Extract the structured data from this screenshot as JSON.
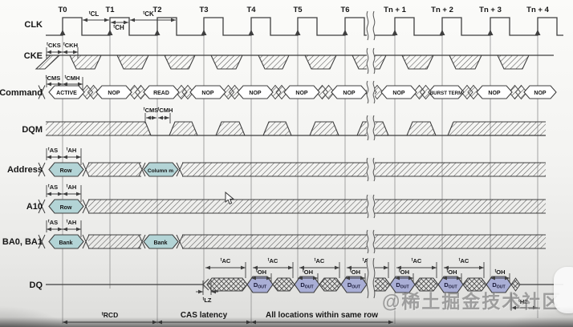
{
  "diagram": {
    "clock_labels": [
      "T0",
      "T1",
      "T2",
      "T3",
      "T4",
      "T5",
      "T6",
      "Tn + 1",
      "Tn + 2",
      "Tn + 3",
      "Tn + 4"
    ],
    "signal_labels": {
      "clk": "CLK",
      "cke": "CKE",
      "command": "Command",
      "dqm": "DQM",
      "address": "Address",
      "a10": "A10",
      "ba": "BA0, BA1",
      "dq": "DQ"
    },
    "commands": [
      "ACTIVE",
      "NOP",
      "READ",
      "NOP",
      "NOP",
      "NOP",
      "NOP",
      "NOP",
      "BURST TERM",
      "NOP",
      "NOP"
    ],
    "address_row": {
      "bubbles": [
        "Row",
        "Column m"
      ]
    },
    "a10_row": {
      "bubbles": [
        "Row"
      ]
    },
    "ba_row": {
      "bubbles": [
        "Bank",
        "Bank"
      ]
    },
    "dq_row": {
      "data_label": {
        "main": "D",
        "sub": "OUT"
      },
      "data_count": 6
    },
    "timing_labels": {
      "tCL": {
        "pre": "t",
        "main": "CL"
      },
      "tCH": {
        "pre": "t",
        "main": "CH"
      },
      "tCK": {
        "pre": "t",
        "main": "CK"
      },
      "tCKS": {
        "pre": "t",
        "main": "CKS"
      },
      "tCKH": {
        "pre": "t",
        "main": "CKH"
      },
      "tCMS": {
        "pre": "t",
        "main": "CMS"
      },
      "tCMH": {
        "pre": "t",
        "main": "CMH"
      },
      "tAS": {
        "pre": "t",
        "main": "AS"
      },
      "tAH": {
        "pre": "t",
        "main": "AH"
      },
      "tRCD": {
        "pre": "t",
        "main": "RCD"
      },
      "tLZ": {
        "pre": "t",
        "main": "LZ"
      },
      "tAC": {
        "pre": "t",
        "main": "AC"
      },
      "tOH": {
        "pre": "t",
        "main": "OH"
      },
      "tHZ": {
        "pre": "t",
        "main": "HZ"
      }
    },
    "bottom_annotations": [
      {
        "timing_key": "tRCD",
        "text": ""
      },
      {
        "text": "CAS latency"
      },
      {
        "text": "All locations within same row"
      }
    ]
  },
  "overlay": {
    "watermark": "@稀土掘金技术社区"
  },
  "colors": {
    "line": "#3f3f3f",
    "grid": "#8f8f8f",
    "hatch": "#555555",
    "text": "#161616",
    "bubble_white": "#ffffff",
    "bubble_teal": "#b3d4d6",
    "bubble_purple": "#a9aed5"
  }
}
